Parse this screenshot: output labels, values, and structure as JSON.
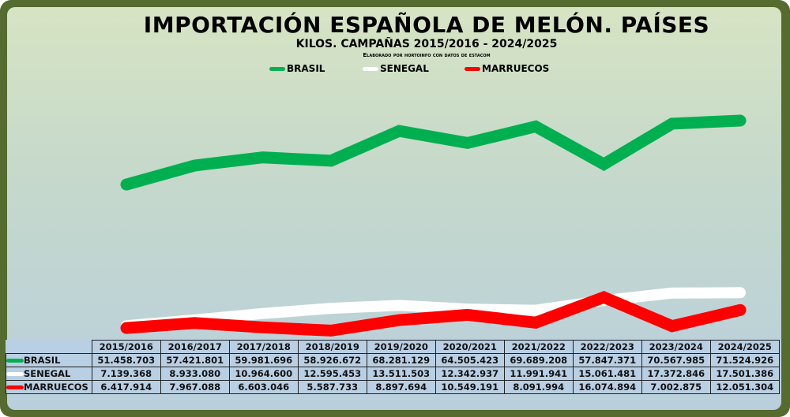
{
  "chart_data": {
    "type": "line",
    "title": "IMPORTACIÓN ESPAÑOLA DE MELÓN. PAÍSES",
    "subtitle": "KILOS. CAMPAÑAS 2015/2016 - 2024/2025",
    "credit": "Elaborado por hortoinfo con datos de estacom",
    "xlabel": "",
    "ylabel": "Kilos",
    "ylim": [
      0,
      80000000
    ],
    "grid": false,
    "legend_position": "top-center",
    "categories": [
      "2015/2016",
      "2016/2017",
      "2017/2018",
      "2018/2019",
      "2019/2020",
      "2020/2021",
      "2021/2022",
      "2022/2023",
      "2023/2024",
      "2024/2025"
    ],
    "series": [
      {
        "name": "BRASIL",
        "color": "#00b050",
        "values": [
          51458703,
          57421801,
          59981696,
          58926672,
          68281129,
          64505423,
          69689208,
          57847371,
          70567985,
          71524926
        ],
        "labels": [
          "51.458.703",
          "57.421.801",
          "59.981.696",
          "58.926.672",
          "68.281.129",
          "64.505.423",
          "69.689.208",
          "57.847.371",
          "70.567.985",
          "71.524.926"
        ]
      },
      {
        "name": "SENEGAL",
        "color": "#ffffff",
        "values": [
          7139368,
          8933080,
          10964600,
          12595453,
          13511503,
          12342937,
          11991941,
          15061481,
          17372846,
          17501386
        ],
        "labels": [
          "7.139.368",
          "8.933.080",
          "10.964.600",
          "12.595.453",
          "13.511.503",
          "12.342.937",
          "11.991.941",
          "15.061.481",
          "17.372.846",
          "17.501.386"
        ]
      },
      {
        "name": "MARRUECOS",
        "color": "#ff0000",
        "values": [
          6417914,
          7967088,
          6603046,
          5587733,
          8897694,
          10549191,
          8091994,
          16074894,
          7002875,
          12051304
        ],
        "labels": [
          "6.417.914",
          "7.967.088",
          "6.603.046",
          "5.587.733",
          "8.897.694",
          "10.549.191",
          "8.091.994",
          "16.074.894",
          "7.002.875",
          "12.051.304"
        ]
      }
    ]
  },
  "colors": {
    "frame": "#556b2f",
    "brasil": "#00b050",
    "senegal": "#ffffff",
    "marruecos": "#ff0000"
  }
}
